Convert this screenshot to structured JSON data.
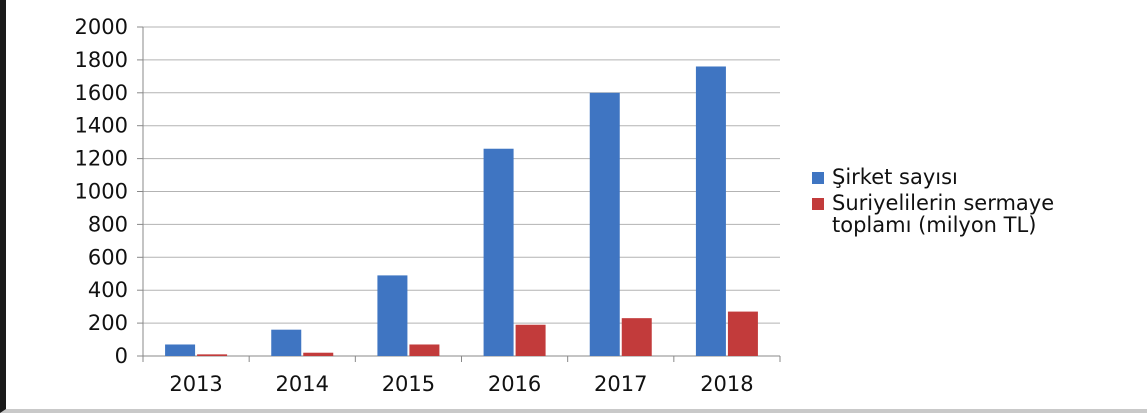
{
  "chart_data": {
    "type": "bar",
    "title": "",
    "xlabel": "",
    "ylabel": "",
    "categories": [
      "2013",
      "2014",
      "2015",
      "2016",
      "2017",
      "2018"
    ],
    "series": [
      {
        "name": "Şirket sayısı",
        "color": "#3f75c2",
        "values": [
          70,
          160,
          490,
          1260,
          1600,
          1760
        ]
      },
      {
        "name": "Suriyelilerin sermaye\ntoplamı (milyon TL)",
        "color": "#c23b3b",
        "values": [
          10,
          20,
          70,
          190,
          230,
          270
        ]
      }
    ],
    "ylim": [
      0,
      2000
    ],
    "yticks": [
      "0",
      "200",
      "400",
      "600",
      "800",
      "1000",
      "1200",
      "1400",
      "1600",
      "1800",
      "2000"
    ],
    "grid": true,
    "legend_position": "right"
  }
}
